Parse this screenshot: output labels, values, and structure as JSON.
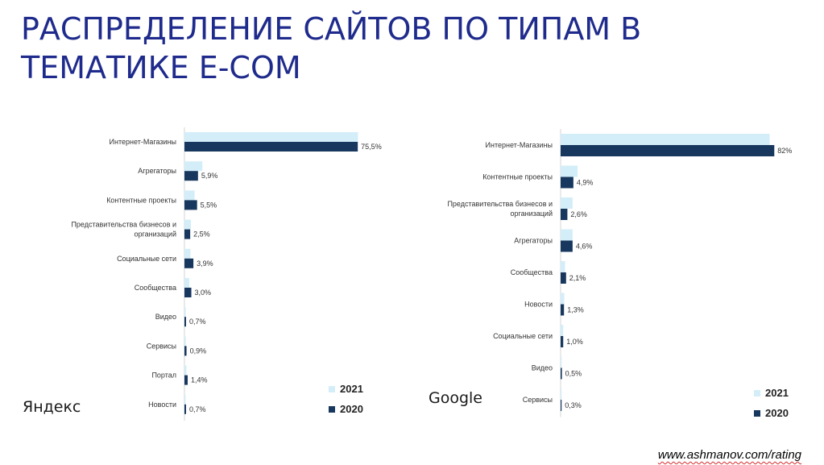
{
  "page": {
    "title": "РАСПРЕДЕЛЕНИЕ САЙТОВ ПО ТИПАМ В ТЕМАТИКЕ E-COM",
    "footer_link": "www.ashmanov.com/rating"
  },
  "colors": {
    "series_2021": "#d3eef8",
    "series_2020": "#17375e",
    "title": "#1f2b8c"
  },
  "chart_data": [
    {
      "type": "bar",
      "orientation": "horizontal",
      "engine": "Яндекс",
      "categories": [
        "Интернет-Магазины",
        "Агрегаторы",
        "Контентные проекты",
        "Представительства бизнесов и организаций",
        "Социальные сети",
        "Сообщества",
        "Видео",
        "Сервисы",
        "Портал",
        "Новости"
      ],
      "category_lines": [
        [
          "Интернет-Магазины"
        ],
        [
          "Агрегаторы"
        ],
        [
          "Контентные проекты"
        ],
        [
          "Представительства бизнесов и",
          "организаций"
        ],
        [
          "Социальные сети"
        ],
        [
          "Сообщества"
        ],
        [
          "Видео"
        ],
        [
          "Сервисы"
        ],
        [
          "Портал"
        ],
        [
          "Новости"
        ]
      ],
      "series": [
        {
          "name": "2021",
          "values": [
            75.6,
            7.8,
            4.4,
            2.8,
            2.6,
            2.1,
            0.6,
            0.6,
            0.9,
            0.5
          ]
        },
        {
          "name": "2020",
          "values": [
            75.5,
            5.9,
            5.5,
            2.5,
            3.9,
            3.0,
            0.7,
            0.9,
            1.4,
            0.7
          ]
        }
      ],
      "data_labels_2020": [
        "75,5%",
        "5,9%",
        "5,5%",
        "2,5%",
        "3,9%",
        "3,0%",
        "0,7%",
        "0,9%",
        "1,4%",
        "0,7%"
      ],
      "xlim": [
        0,
        80
      ],
      "legend": {
        "position": "bottom-right",
        "items": [
          "2021",
          "2020"
        ]
      },
      "grid": false
    },
    {
      "type": "bar",
      "orientation": "horizontal",
      "engine": "Google",
      "categories": [
        "Интернет-Магазины",
        "Контентные проекты",
        "Представительства бизнесов и организаций",
        "Агрегаторы",
        "Сообщества",
        "Новости",
        "Социальные сети",
        "Видео",
        "Сервисы"
      ],
      "category_lines": [
        [
          "Интернет-Магазины"
        ],
        [
          "Контентные проекты"
        ],
        [
          "Представительства бизнесов и",
          "организаций"
        ],
        [
          "Агрегаторы"
        ],
        [
          "Сообщества"
        ],
        [
          "Новости"
        ],
        [
          "Социальные сети"
        ],
        [
          "Видео"
        ],
        [
          "Сервисы"
        ]
      ],
      "series": [
        {
          "name": "2021",
          "values": [
            80.2,
            6.5,
            4.6,
            4.6,
            1.7,
            1.4,
            1.0,
            0.4,
            0.3
          ]
        },
        {
          "name": "2020",
          "values": [
            82.0,
            4.9,
            2.6,
            4.6,
            2.1,
            1.3,
            1.0,
            0.5,
            0.3
          ]
        }
      ],
      "data_labels_2020": [
        "82%",
        "4,9%",
        "2,6%",
        "4,6%",
        "2,1%",
        "1,3%",
        "1,0%",
        "0,5%",
        "0,3%"
      ],
      "xlim": [
        0,
        85
      ],
      "legend": {
        "position": "bottom-right",
        "items": [
          "2021",
          "2020"
        ]
      },
      "grid": false
    }
  ]
}
